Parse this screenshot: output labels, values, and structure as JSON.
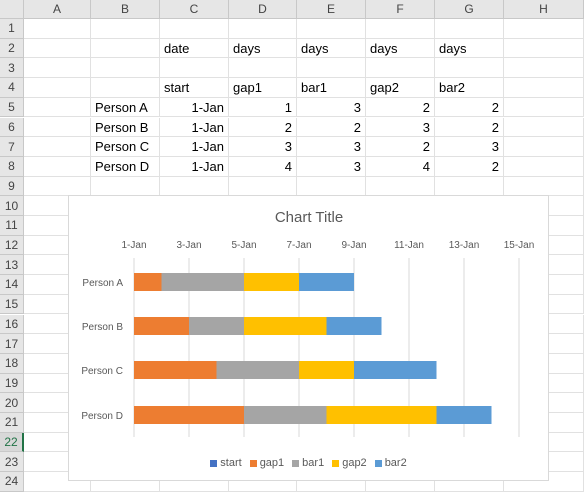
{
  "columns": [
    "A",
    "B",
    "C",
    "D",
    "E",
    "F",
    "G",
    "H"
  ],
  "rows": [
    "1",
    "2",
    "3",
    "4",
    "5",
    "6",
    "7",
    "8",
    "9",
    "10",
    "11",
    "12",
    "13",
    "14",
    "15",
    "16",
    "17",
    "18",
    "19",
    "20",
    "21",
    "22",
    "23",
    "24"
  ],
  "active_row": "22",
  "cells": {
    "C2": "date",
    "D2": "days",
    "E2": "days",
    "F2": "days",
    "G2": "days",
    "C4": "start",
    "D4": "gap1",
    "E4": "bar1",
    "F4": "gap2",
    "G4": "bar2",
    "B5": "Person A",
    "C5": "1-Jan",
    "D5": "1",
    "E5": "3",
    "F5": "2",
    "G5": "2",
    "B6": "Person B",
    "C6": "1-Jan",
    "D6": "2",
    "E6": "2",
    "F6": "3",
    "G6": "2",
    "B7": "Person C",
    "C7": "1-Jan",
    "D7": "3",
    "E7": "3",
    "F7": "2",
    "G7": "3",
    "B8": "Person D",
    "C8": "1-Jan",
    "D8": "4",
    "E8": "3",
    "F8": "4",
    "G8": "2"
  },
  "colors": {
    "start": "#4472c4",
    "gap1": "#ed7d31",
    "bar1": "#a5a5a5",
    "gap2": "#ffc000",
    "bar2": "#5b9bd5"
  },
  "chart_data": {
    "type": "bar",
    "orientation": "horizontal",
    "stacked": true,
    "title": "Chart Title",
    "categories": [
      "Person A",
      "Person B",
      "Person C",
      "Person D"
    ],
    "x_tick_labels": [
      "1-Jan",
      "3-Jan",
      "5-Jan",
      "7-Jan",
      "9-Jan",
      "11-Jan",
      "13-Jan",
      "15-Jan"
    ],
    "xlim": [
      "1-Jan",
      "15-Jan"
    ],
    "grid": true,
    "legend_position": "bottom",
    "series": [
      {
        "name": "start",
        "values": [
          "1-Jan",
          "1-Jan",
          "1-Jan",
          "1-Jan"
        ]
      },
      {
        "name": "gap1",
        "values": [
          1,
          2,
          3,
          4
        ]
      },
      {
        "name": "bar1",
        "values": [
          3,
          2,
          3,
          3
        ]
      },
      {
        "name": "gap2",
        "values": [
          2,
          3,
          2,
          4
        ]
      },
      {
        "name": "bar2",
        "values": [
          2,
          2,
          3,
          2
        ]
      }
    ]
  }
}
